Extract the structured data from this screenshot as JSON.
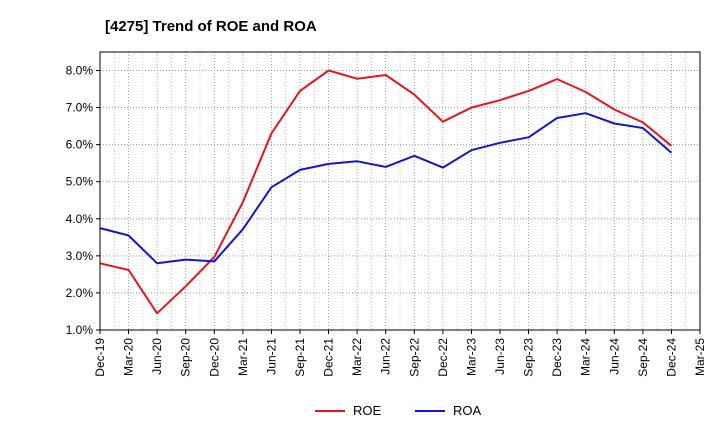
{
  "chart_data": {
    "type": "line",
    "title": "[4275]  Trend of ROE and ROA",
    "xlabel": "",
    "ylabel": "",
    "x": [
      "Dec-19",
      "Mar-20",
      "Jun-20",
      "Sep-20",
      "Dec-20",
      "Mar-21",
      "Jun-21",
      "Sep-21",
      "Dec-21",
      "Mar-22",
      "Jun-22",
      "Sep-22",
      "Dec-22",
      "Mar-23",
      "Jun-23",
      "Sep-23",
      "Dec-23",
      "Mar-24",
      "Jun-24",
      "Sep-24",
      "Dec-24",
      "Mar-25"
    ],
    "series": [
      {
        "name": "ROE",
        "color": "#e8141e",
        "values": [
          2.8,
          2.62,
          1.45,
          2.18,
          2.97,
          4.45,
          6.3,
          7.45,
          8.0,
          7.78,
          7.88,
          7.35,
          6.62,
          7.0,
          7.2,
          7.45,
          7.77,
          7.42,
          6.95,
          6.6,
          5.97,
          null
        ]
      },
      {
        "name": "ROA",
        "color": "#1414d2",
        "values": [
          3.75,
          3.55,
          2.8,
          2.9,
          2.85,
          3.72,
          4.85,
          5.32,
          5.48,
          5.55,
          5.4,
          5.7,
          5.38,
          5.85,
          6.05,
          6.2,
          6.72,
          6.85,
          6.57,
          6.45,
          5.78,
          null
        ]
      }
    ],
    "yticks": [
      "1.0%",
      "2.0%",
      "3.0%",
      "4.0%",
      "5.0%",
      "6.0%",
      "7.0%",
      "8.0%"
    ],
    "ylim": [
      1.0,
      8.5
    ],
    "grid": true,
    "legend": "bottom-center"
  }
}
